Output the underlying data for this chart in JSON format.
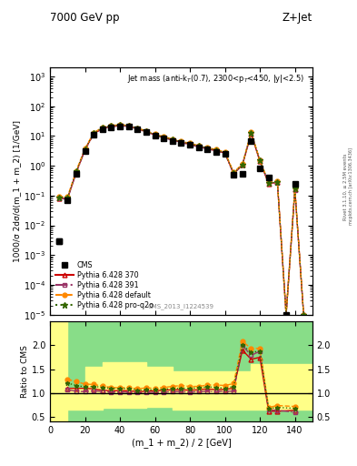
{
  "title_left": "7000 GeV pp",
  "title_right": "Z+Jet",
  "annotation": "Jet mass (anti-k$_{T}$(0.7), 2300<p$_{T}$<450, |y|<2.5)",
  "cms_id": "CMS_2013_I1224539",
  "rivet_label": "Rivet 3.1.10, ≥ 2.5M events",
  "mcplots_label": "mcplots.cern.ch [arXiv:1306.3436]",
  "ylabel_main": "1000/σ 2dσ/d(m_1 + m_2) [1/GeV]",
  "ylabel_ratio": "Ratio to CMS",
  "xlabel": "(m_1 + m_2) / 2 [GeV]",
  "xlim": [
    0,
    150
  ],
  "ylim_main": [
    1e-05,
    2000.0
  ],
  "ylim_ratio": [
    0.4,
    2.5
  ],
  "ratio_yticks": [
    0.5,
    1.0,
    1.5,
    2.0
  ],
  "x_cms": [
    5,
    10,
    15,
    20,
    25,
    30,
    35,
    40,
    45,
    50,
    55,
    60,
    65,
    70,
    75,
    80,
    85,
    90,
    95,
    100,
    105,
    110,
    115,
    120,
    125,
    130,
    135,
    140,
    145
  ],
  "y_cms": [
    0.003,
    0.07,
    0.55,
    3.2,
    11.0,
    17.0,
    20.0,
    21.5,
    20.5,
    17.0,
    13.5,
    10.5,
    8.5,
    7.0,
    5.8,
    5.0,
    4.2,
    3.5,
    3.0,
    2.5,
    0.5,
    0.55,
    7.0,
    0.8,
    0.4,
    1e-05,
    1e-05,
    0.25,
    1e-05
  ],
  "x_mc": [
    5,
    10,
    15,
    20,
    25,
    30,
    35,
    40,
    45,
    50,
    55,
    60,
    65,
    70,
    75,
    80,
    85,
    90,
    95,
    100,
    105,
    110,
    115,
    120,
    125,
    130,
    135,
    140,
    145
  ],
  "y_p370": [
    0.08,
    0.08,
    0.6,
    3.5,
    12.0,
    18.0,
    21.0,
    22.5,
    21.5,
    17.5,
    14.0,
    11.0,
    9.0,
    7.5,
    6.2,
    5.3,
    4.5,
    3.8,
    3.2,
    2.7,
    0.55,
    1.05,
    12.0,
    1.4,
    0.25,
    0.28,
    1e-05,
    0.16,
    1e-05
  ],
  "y_p391": [
    0.08,
    0.075,
    0.57,
    3.3,
    11.5,
    17.5,
    20.5,
    22.0,
    21.0,
    17.2,
    13.7,
    10.7,
    8.7,
    7.2,
    5.95,
    5.1,
    4.3,
    3.65,
    3.1,
    2.6,
    0.52,
    1.1,
    12.5,
    1.5,
    0.26,
    0.27,
    1e-05,
    0.15,
    1e-05
  ],
  "y_pdef": [
    0.09,
    0.09,
    0.68,
    3.8,
    13.0,
    19.5,
    22.5,
    24.0,
    23.0,
    18.5,
    15.0,
    11.5,
    9.5,
    8.0,
    6.7,
    5.7,
    4.8,
    4.1,
    3.5,
    2.9,
    0.6,
    1.15,
    13.5,
    1.55,
    0.28,
    0.3,
    1e-05,
    0.18,
    1e-05
  ],
  "y_pq2o": [
    0.085,
    0.085,
    0.64,
    3.6,
    12.5,
    19.0,
    22.0,
    23.5,
    22.5,
    18.0,
    14.5,
    11.2,
    9.2,
    7.7,
    6.4,
    5.5,
    4.65,
    3.95,
    3.35,
    2.75,
    0.57,
    1.1,
    13.0,
    1.5,
    0.27,
    0.28,
    1e-05,
    0.17,
    1e-05
  ],
  "ratio_x": [
    10,
    15,
    20,
    25,
    30,
    35,
    40,
    45,
    50,
    55,
    60,
    65,
    70,
    75,
    80,
    85,
    90,
    95,
    100,
    105,
    110,
    115,
    120,
    125,
    130,
    140
  ],
  "ratio_p370": [
    1.1,
    1.1,
    1.1,
    1.09,
    1.06,
    1.05,
    1.05,
    1.05,
    1.03,
    1.04,
    1.05,
    1.06,
    1.07,
    1.07,
    1.06,
    1.07,
    1.09,
    1.07,
    1.08,
    1.1,
    1.9,
    1.71,
    1.75,
    0.62,
    0.62,
    0.64
  ],
  "ratio_p391": [
    1.07,
    1.04,
    1.03,
    1.05,
    1.03,
    1.02,
    1.02,
    1.02,
    1.01,
    1.01,
    1.02,
    1.02,
    1.03,
    1.03,
    1.02,
    1.03,
    1.04,
    1.03,
    1.04,
    1.04,
    2.0,
    1.79,
    1.88,
    0.65,
    0.64,
    0.6
  ],
  "ratio_pdef": [
    1.29,
    1.24,
    1.19,
    1.18,
    1.15,
    1.12,
    1.11,
    1.12,
    1.09,
    1.11,
    1.1,
    1.12,
    1.14,
    1.16,
    1.14,
    1.14,
    1.17,
    1.17,
    1.16,
    1.2,
    2.09,
    1.93,
    1.94,
    0.7,
    0.74,
    0.72
  ],
  "ratio_pq2o": [
    1.21,
    1.16,
    1.13,
    1.14,
    1.12,
    1.1,
    1.09,
    1.1,
    1.06,
    1.07,
    1.07,
    1.08,
    1.1,
    1.1,
    1.1,
    1.11,
    1.13,
    1.12,
    1.1,
    1.14,
    2.0,
    1.86,
    1.875,
    0.675,
    0.7,
    0.68
  ],
  "color_p370": "#cc0000",
  "color_p391": "#993366",
  "color_pdef": "#ff8800",
  "color_pq2o": "#336600",
  "color_cms": "#000000",
  "green_band_lo": 0.4,
  "green_band_hi": 2.5,
  "green_color": "#88dd88",
  "yband_edges": [
    0,
    10,
    20,
    30,
    55,
    70,
    100,
    115,
    130,
    150
  ],
  "yband_lo": [
    0.4,
    0.65,
    0.65,
    0.7,
    0.72,
    0.65,
    0.65,
    0.65,
    0.65,
    0.65
  ],
  "yband_hi": [
    2.5,
    1.1,
    1.55,
    1.65,
    1.55,
    1.45,
    1.45,
    1.6,
    1.6,
    1.6
  ]
}
